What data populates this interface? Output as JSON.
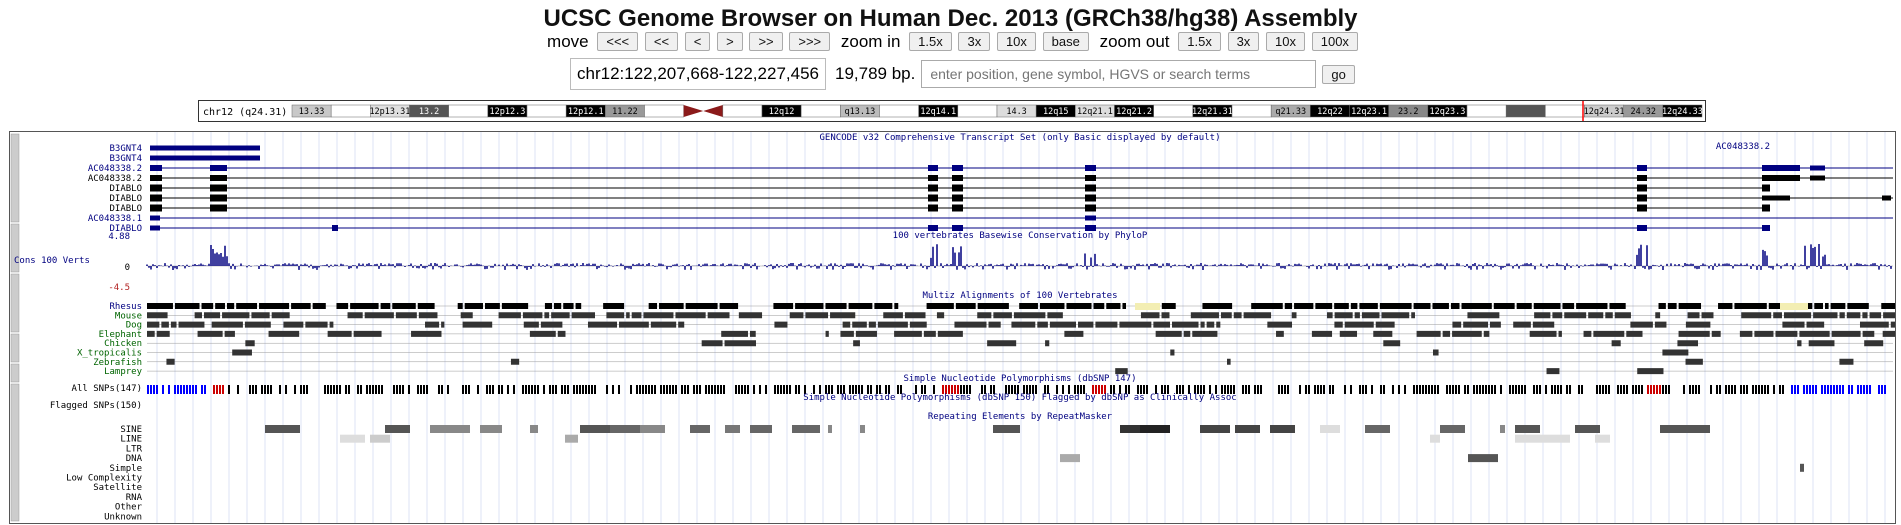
{
  "title": "UCSC Genome Browser on Human Dec. 2013 (GRCh38/hg38) Assembly",
  "nav": {
    "move_label": "move",
    "move_buttons": [
      "<<<",
      "<<",
      "<",
      ">",
      ">>",
      ">>>"
    ],
    "zoom_in_label": "zoom in",
    "zoom_in_buttons": [
      "1.5x",
      "3x",
      "10x",
      "base"
    ],
    "zoom_out_label": "zoom out",
    "zoom_out_buttons": [
      "1.5x",
      "3x",
      "10x",
      "100x"
    ]
  },
  "position": {
    "range": "chr12:122,207,668-122,227,456",
    "size": "19,789 bp.",
    "search_placeholder": "enter position, gene symbol, HGVS or search terms",
    "go_label": "go"
  },
  "ideogram": {
    "label": "chr12 (q24.31)",
    "bands": [
      {
        "name": "13.33",
        "shade": "#c8c8c8"
      },
      {
        "name": "",
        "shade": "#ffffff"
      },
      {
        "name": "12p13.31",
        "shade": "#e0e0e0"
      },
      {
        "name": "13.2",
        "shade": "#555555"
      },
      {
        "name": "",
        "shade": "#ffffff"
      },
      {
        "name": "12p12.3",
        "shade": "#000000"
      },
      {
        "name": "",
        "shade": "#ffffff"
      },
      {
        "name": "12p12.1",
        "shade": "#000000"
      },
      {
        "name": "11.22",
        "shade": "#999999"
      },
      {
        "name": "",
        "shade": "#ffffff"
      },
      {
        "name": "",
        "shade": "#8b1a1a"
      },
      {
        "name": "",
        "shade": "#ffffff"
      },
      {
        "name": "12q12",
        "shade": "#000000"
      },
      {
        "name": "",
        "shade": "#ffffff"
      },
      {
        "name": "q13.13",
        "shade": "#bbbbbb"
      },
      {
        "name": "",
        "shade": "#ffffff"
      },
      {
        "name": "12q14.1",
        "shade": "#000000"
      },
      {
        "name": "",
        "shade": "#ffffff"
      },
      {
        "name": "14.3",
        "shade": "#dddddd"
      },
      {
        "name": "12q15",
        "shade": "#000000"
      },
      {
        "name": "12q21.1",
        "shade": "#dddddd"
      },
      {
        "name": "12q21.2",
        "shade": "#000000"
      },
      {
        "name": "",
        "shade": "#ffffff"
      },
      {
        "name": "12q21.31",
        "shade": "#000000"
      },
      {
        "name": "",
        "shade": "#ffffff"
      },
      {
        "name": "q21.33",
        "shade": "#aaaaaa"
      },
      {
        "name": "12q22",
        "shade": "#000000"
      },
      {
        "name": "12q23.1",
        "shade": "#000000"
      },
      {
        "name": "23.2",
        "shade": "#888888"
      },
      {
        "name": "12q23.3",
        "shade": "#000000"
      },
      {
        "name": "",
        "shade": "#ffffff"
      },
      {
        "name": "",
        "shade": "#555555"
      },
      {
        "name": "",
        "shade": "#ffffff"
      },
      {
        "name": "12q24.31",
        "shade": "#cccccc"
      },
      {
        "name": "24.32",
        "shade": "#999999"
      },
      {
        "name": "12q24.33",
        "shade": "#000000"
      }
    ],
    "highlight_color": "#ff0000"
  },
  "tracks": {
    "gencode": {
      "title": "GENCODE v32 Comprehensive Transcript Set (only Basic displayed by default)",
      "transcripts": [
        {
          "name": "B3GNT4",
          "color": "#000080"
        },
        {
          "name": "B3GNT4",
          "color": "#000080"
        },
        {
          "name": "AC048338.2",
          "color": "#000080"
        },
        {
          "name": "AC048338.2",
          "color": "#000000"
        },
        {
          "name": "DIABLO",
          "color": "#000000"
        },
        {
          "name": "DIABLO",
          "color": "#000000"
        },
        {
          "name": "DIABLO",
          "color": "#000000"
        },
        {
          "name": "AC048338.1",
          "color": "#000080"
        },
        {
          "name": "DIABLO",
          "color": "#000080"
        }
      ],
      "right_label": "AC048338.2"
    },
    "cons": {
      "title": "100 vertebrates Basewise Conservation by PhyloP",
      "label": "Cons 100 Verts",
      "max": "4.88",
      "zero": "0",
      "min": "-4.5"
    },
    "multiz": {
      "title": "Multiz Alignments of 100 Vertebrates",
      "species": [
        {
          "name": "Rhesus",
          "color": "#000080"
        },
        {
          "name": "Mouse",
          "color": "#006400"
        },
        {
          "name": "Dog",
          "color": "#006400"
        },
        {
          "name": "Elephant",
          "color": "#006400"
        },
        {
          "name": "Chicken",
          "color": "#006400"
        },
        {
          "name": "X_tropicalis",
          "color": "#006400"
        },
        {
          "name": "Zebrafish",
          "color": "#006400"
        },
        {
          "name": "Lamprey",
          "color": "#006400"
        }
      ]
    },
    "snp_all": {
      "title": "Simple Nucleotide Polymorphisms (dbSNP 147)",
      "label": "All SNPs(147)"
    },
    "snp_flag": {
      "title": "Simple Nucleotide Polymorphisms (dbSNP 150) Flagged by dbSNP as Clinically Assoc",
      "label": "Flagged SNPs(150)"
    },
    "rmsk": {
      "title": "Repeating Elements by RepeatMasker",
      "classes": [
        "SINE",
        "LINE",
        "LTR",
        "DNA",
        "Simple",
        "Low Complexity",
        "Satellite",
        "RNA",
        "Other",
        "Unknown"
      ]
    }
  }
}
